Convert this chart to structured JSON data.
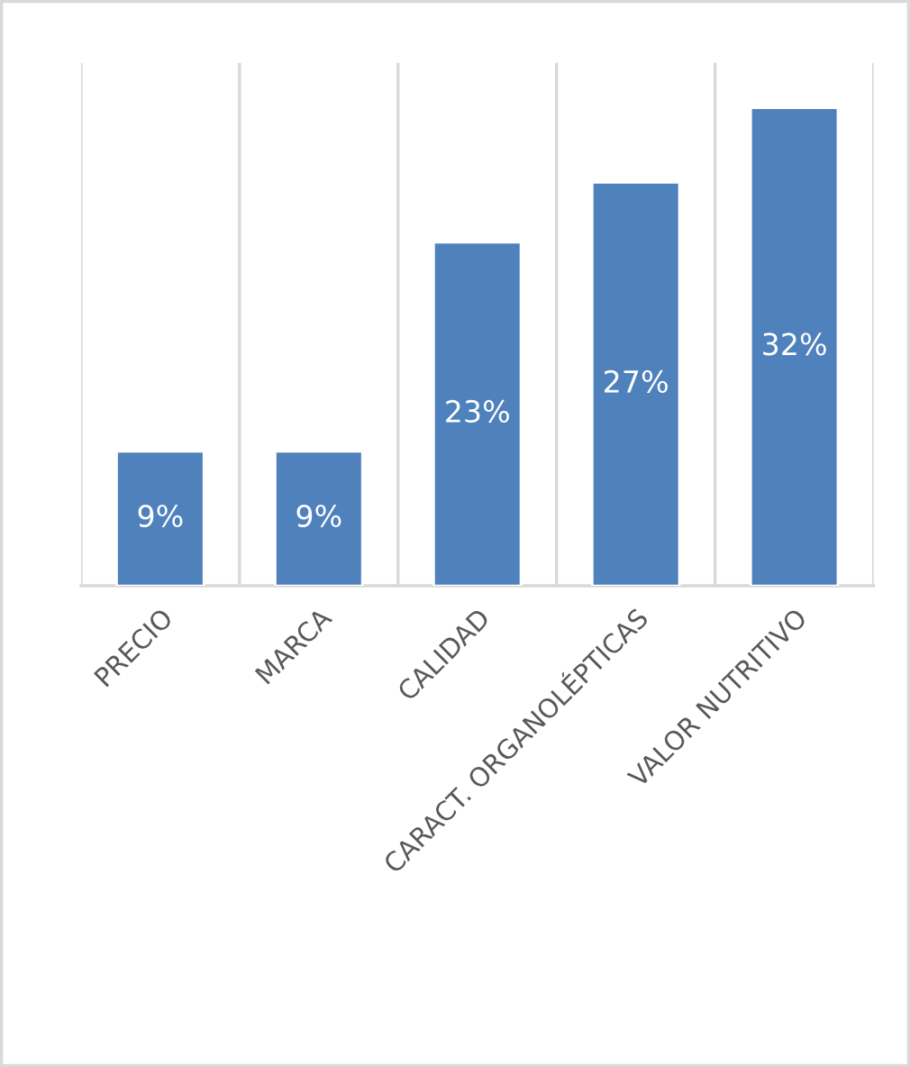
{
  "chart_data": {
    "type": "bar",
    "categories": [
      "PRECIO",
      "MARCA",
      "CALIDAD",
      "CARACT. ORGANOLÉPTICAS",
      "VALOR NUTRITIVO"
    ],
    "values": [
      9,
      9,
      23,
      27,
      32
    ],
    "value_labels": [
      "9%",
      "9%",
      "23%",
      "27%",
      "32%"
    ],
    "color": "#4f81bd",
    "ylim": [
      0,
      35
    ],
    "tick_labels": "x",
    "grid": "x"
  }
}
